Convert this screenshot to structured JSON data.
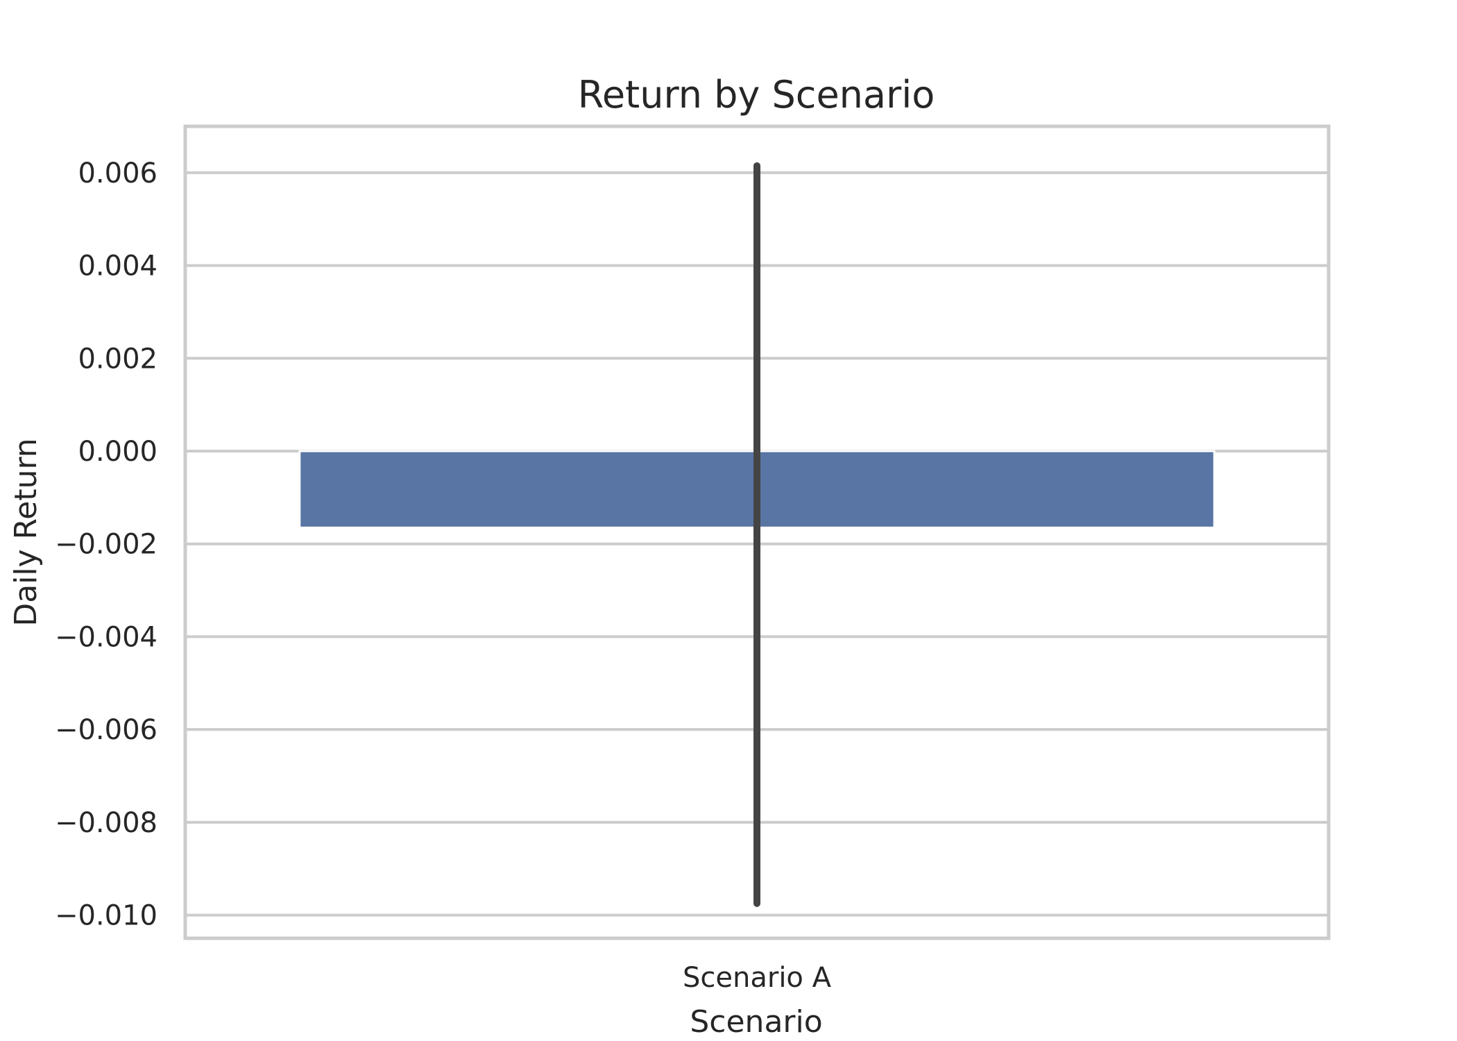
{
  "chart_data": {
    "type": "bar",
    "title": "Return by Scenario",
    "xlabel": "Scenario",
    "ylabel": "Daily Return",
    "categories": [
      "Scenario A"
    ],
    "values": [
      -0.00165
    ],
    "error_bars": [
      {
        "low": -0.00975,
        "high": 0.00615
      }
    ],
    "ylim": [
      -0.0105,
      0.007
    ],
    "yticks": [
      0.006,
      0.004,
      0.002,
      0.0,
      -0.002,
      -0.004,
      -0.006,
      -0.008,
      -0.01
    ],
    "ytick_labels": [
      "0.006",
      "0.004",
      "0.002",
      "0.000",
      "−0.002",
      "−0.004",
      "−0.006",
      "−0.008",
      "−0.010"
    ],
    "grid": "horizontal",
    "colors": {
      "bar": "#5975a4",
      "error_bar": "#444444",
      "grid": "#cccccc",
      "axes_edge": "#cccccc"
    }
  }
}
